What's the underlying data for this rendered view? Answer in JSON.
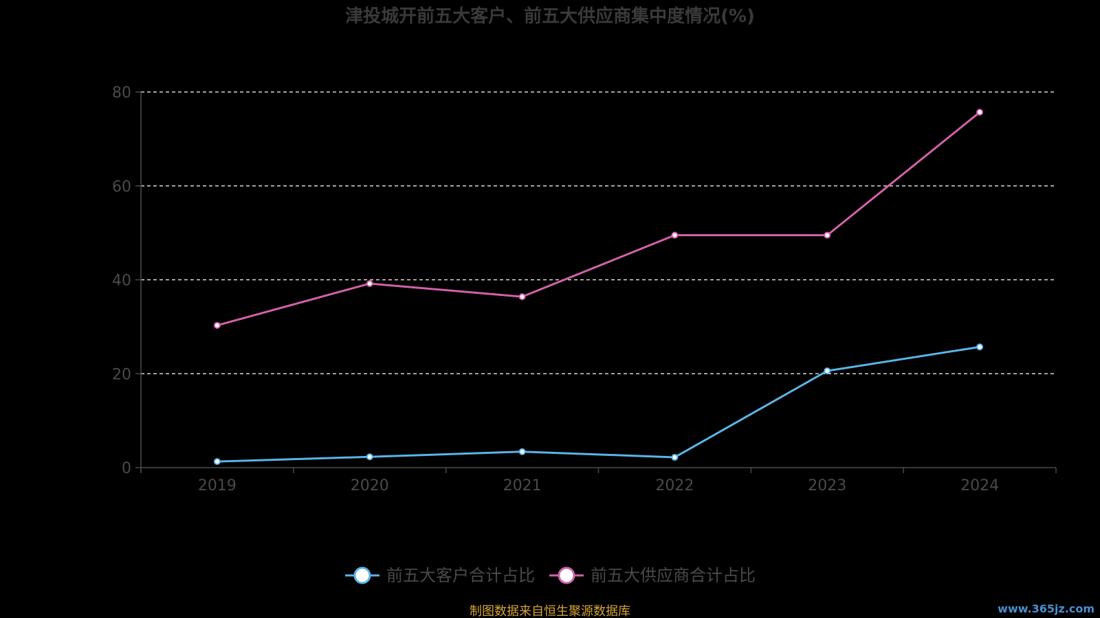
{
  "chart_data": {
    "type": "line",
    "title": "津投城开前五大客户、前五大供应商集中度情况(%)",
    "categories": [
      "2019",
      "2020",
      "2021",
      "2022",
      "2023",
      "2024"
    ],
    "series": [
      {
        "name": "前五大客户合计占比",
        "values": [
          1.3,
          2.3,
          3.4,
          2.2,
          20.6,
          25.7
        ]
      },
      {
        "name": "前五大供应商合计占比",
        "values": [
          30.3,
          39.2,
          36.4,
          49.5,
          49.5,
          75.7
        ]
      }
    ],
    "y_ticks": [
      0,
      20,
      40,
      60,
      80
    ],
    "ylim": [
      0,
      80
    ],
    "grid": true,
    "legend_position": "bottom"
  },
  "colors": {
    "customers": "#5ab4e8",
    "suppliers": "#d261a8",
    "grid": "#ffffff",
    "axis": "#4a4a4a"
  },
  "source_note": "制图数据来自恒生聚源数据库",
  "watermark": "www.365jz.com"
}
